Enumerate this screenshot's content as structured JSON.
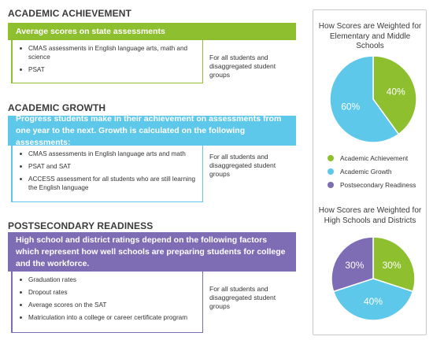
{
  "colors": {
    "green": "#8ebf2f",
    "blue": "#5dc8ea",
    "purple": "#7e6cb4"
  },
  "sections": {
    "achievement": {
      "title": "ACADEMIC ACHIEVEMENT",
      "banner": "Average scores on state assessments",
      "bullets": [
        "CMAS assessments in English language arts, math and science",
        "PSAT"
      ],
      "note": "For all students and disaggregated student groups"
    },
    "growth": {
      "title": "ACADEMIC GROWTH",
      "banner": "Progress students make in their achievement on assessments from one year to the next. Growth is calculated on the following assessments:",
      "bullets": [
        "CMAS assessments in English language arts and math",
        "PSAT and SAT",
        "ACCESS assessment for all students who are still learning the English language"
      ],
      "note": "For all students and disaggregated student groups"
    },
    "postsecondary": {
      "title": "POSTSECONDARY READINESS",
      "banner": "High school and district ratings depend on the following factors which represent how well schools are preparing students for college and the workforce.",
      "bullets": [
        "Graduation rates",
        "Dropout rates",
        "Average scores on the SAT",
        "Matriculation into a college or career certificate program"
      ],
      "note": "For all students and disaggregated student groups"
    }
  },
  "legend": [
    "Academic Achievement",
    "Academic Growth",
    "Postsecondary Readiness"
  ],
  "chart_data": [
    {
      "type": "pie",
      "title": "How Scores are Weighted for Elementary and Middle Schools",
      "categories": [
        "Academic Achievement",
        "Academic Growth"
      ],
      "values": [
        40,
        60
      ],
      "labels": [
        "40%",
        "60%"
      ],
      "colors": [
        "#8ebf2f",
        "#5dc8ea"
      ]
    },
    {
      "type": "pie",
      "title": "How Scores are Weighted for High Schools and Districts",
      "categories": [
        "Academic Achievement",
        "Academic Growth",
        "Postsecondary Readiness"
      ],
      "values": [
        30,
        40,
        30
      ],
      "labels": [
        "30%",
        "40%",
        "30%"
      ],
      "colors": [
        "#8ebf2f",
        "#5dc8ea",
        "#7e6cb4"
      ]
    }
  ]
}
